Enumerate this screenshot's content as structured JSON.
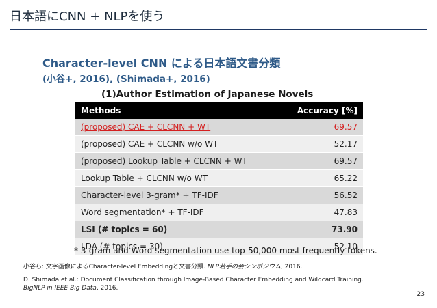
{
  "slide": {
    "title": "日本語にCNN + NLPを使う",
    "heading": "Character-level CNN による日本語文書分類",
    "subheading": "(小谷+, 2016), (Shimada+, 2016)",
    "caption": "(1)Author Estimation of Japanese Novels",
    "page_number": "23"
  },
  "table": {
    "headers": {
      "methods": "Methods",
      "accuracy": "Accuracy [%]"
    },
    "rows": [
      {
        "pre": "",
        "u1": "(proposed) CAE + CLCNN + WT",
        "mid": "",
        "u2": "",
        "post": "",
        "acc": "69.57"
      },
      {
        "pre": "",
        "u1": "(proposed) CAE + CLCNN ",
        "mid": "w/o WT",
        "u2": "",
        "post": "",
        "acc": "52.17"
      },
      {
        "pre": "",
        "u1": "(proposed)",
        "mid": " Lookup Table + ",
        "u2": "CLCNN + WT",
        "post": "",
        "acc": "69.57"
      },
      {
        "pre": "Lookup Table + CLCNN w/o WT",
        "u1": "",
        "mid": "",
        "u2": "",
        "post": "",
        "acc": "65.22"
      },
      {
        "pre": "Character-level 3-gram* + TF-IDF",
        "u1": "",
        "mid": "",
        "u2": "",
        "post": "",
        "acc": "56.52"
      },
      {
        "pre": "Word segmentation* + TF-IDF",
        "u1": "",
        "mid": "",
        "u2": "",
        "post": "",
        "acc": "47.83"
      },
      {
        "pre": "LSI (# topics = 60)",
        "u1": "",
        "mid": "",
        "u2": "",
        "post": "",
        "acc": "73.90"
      },
      {
        "pre": "LDA (# topics = 30)",
        "u1": "",
        "mid": "",
        "u2": "",
        "post": "",
        "acc": "52.10"
      }
    ]
  },
  "footnote": "* 3-gram and Word segmentation use top-50,000 most frequently tokens.",
  "references": {
    "ref1_main": "小谷ら: 文字画像によるCharacter-level Embeddingと文書分類. ",
    "ref1_venue": "NLP若手の会シンポジウム",
    "ref1_year": ", 2016.",
    "ref2_main": "D. Shimada et al.: Document Classification through Image-Based Character Embedding and Wildcard Training.",
    "ref2_venue": "BigNLP in IEEE Big Data",
    "ref2_year": ", 2016."
  },
  "colors": {
    "title_rule": "#1f3864",
    "heading": "#2e5a88",
    "highlight_red": "#d42020",
    "header_bg": "#000000"
  }
}
